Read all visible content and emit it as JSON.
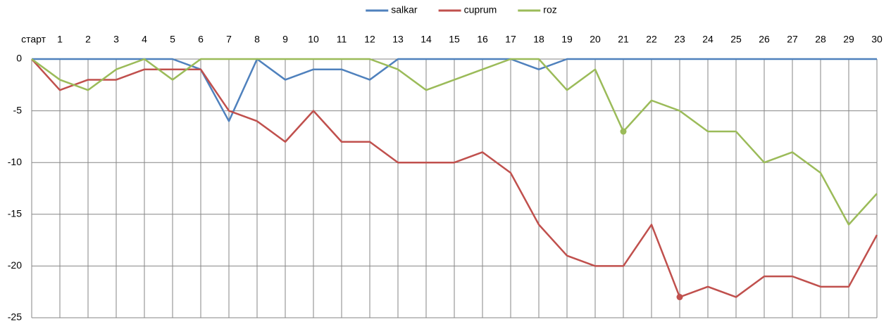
{
  "chart_data": {
    "type": "line",
    "categories": [
      "старт",
      "1",
      "2",
      "3",
      "4",
      "5",
      "6",
      "7",
      "8",
      "9",
      "10",
      "11",
      "12",
      "13",
      "14",
      "15",
      "16",
      "17",
      "18",
      "19",
      "20",
      "21",
      "22",
      "23",
      "24",
      "25",
      "26",
      "27",
      "28",
      "29",
      "30"
    ],
    "series": [
      {
        "name": "salkar",
        "color": "#4f81bd",
        "values": [
          0,
          0,
          0,
          0,
          0,
          0,
          -1,
          -6,
          0,
          -2,
          -1,
          -1,
          -2,
          0,
          0,
          0,
          0,
          0,
          -1,
          0,
          0,
          0,
          0,
          0,
          0,
          0,
          0,
          0,
          0,
          0,
          0
        ]
      },
      {
        "name": "cuprum",
        "color": "#c0504d",
        "values": [
          0,
          -3,
          -2,
          -2,
          -1,
          -1,
          -1,
          -5,
          -6,
          -8,
          -5,
          -8,
          -8,
          -10,
          -10,
          -10,
          -9,
          -11,
          -16,
          -19,
          -20,
          -20,
          -16,
          -23,
          -22,
          -23,
          -21,
          -21,
          -22,
          -22,
          -17
        ],
        "marker_index": 23
      },
      {
        "name": "roz",
        "color": "#9bbb59",
        "values": [
          0,
          -2,
          -3,
          -1,
          0,
          -2,
          0,
          0,
          0,
          0,
          0,
          0,
          0,
          -1,
          -3,
          -2,
          -1,
          0,
          0,
          -3,
          -1,
          -7,
          -4,
          -5,
          -7,
          -7,
          -10,
          -9,
          -11,
          -16,
          -13
        ],
        "marker_index": 21
      }
    ],
    "ylim": [
      -25,
      0
    ],
    "yticks": [
      0,
      -5,
      -10,
      -15,
      -20,
      -25
    ],
    "grid": true,
    "legend": "top"
  }
}
